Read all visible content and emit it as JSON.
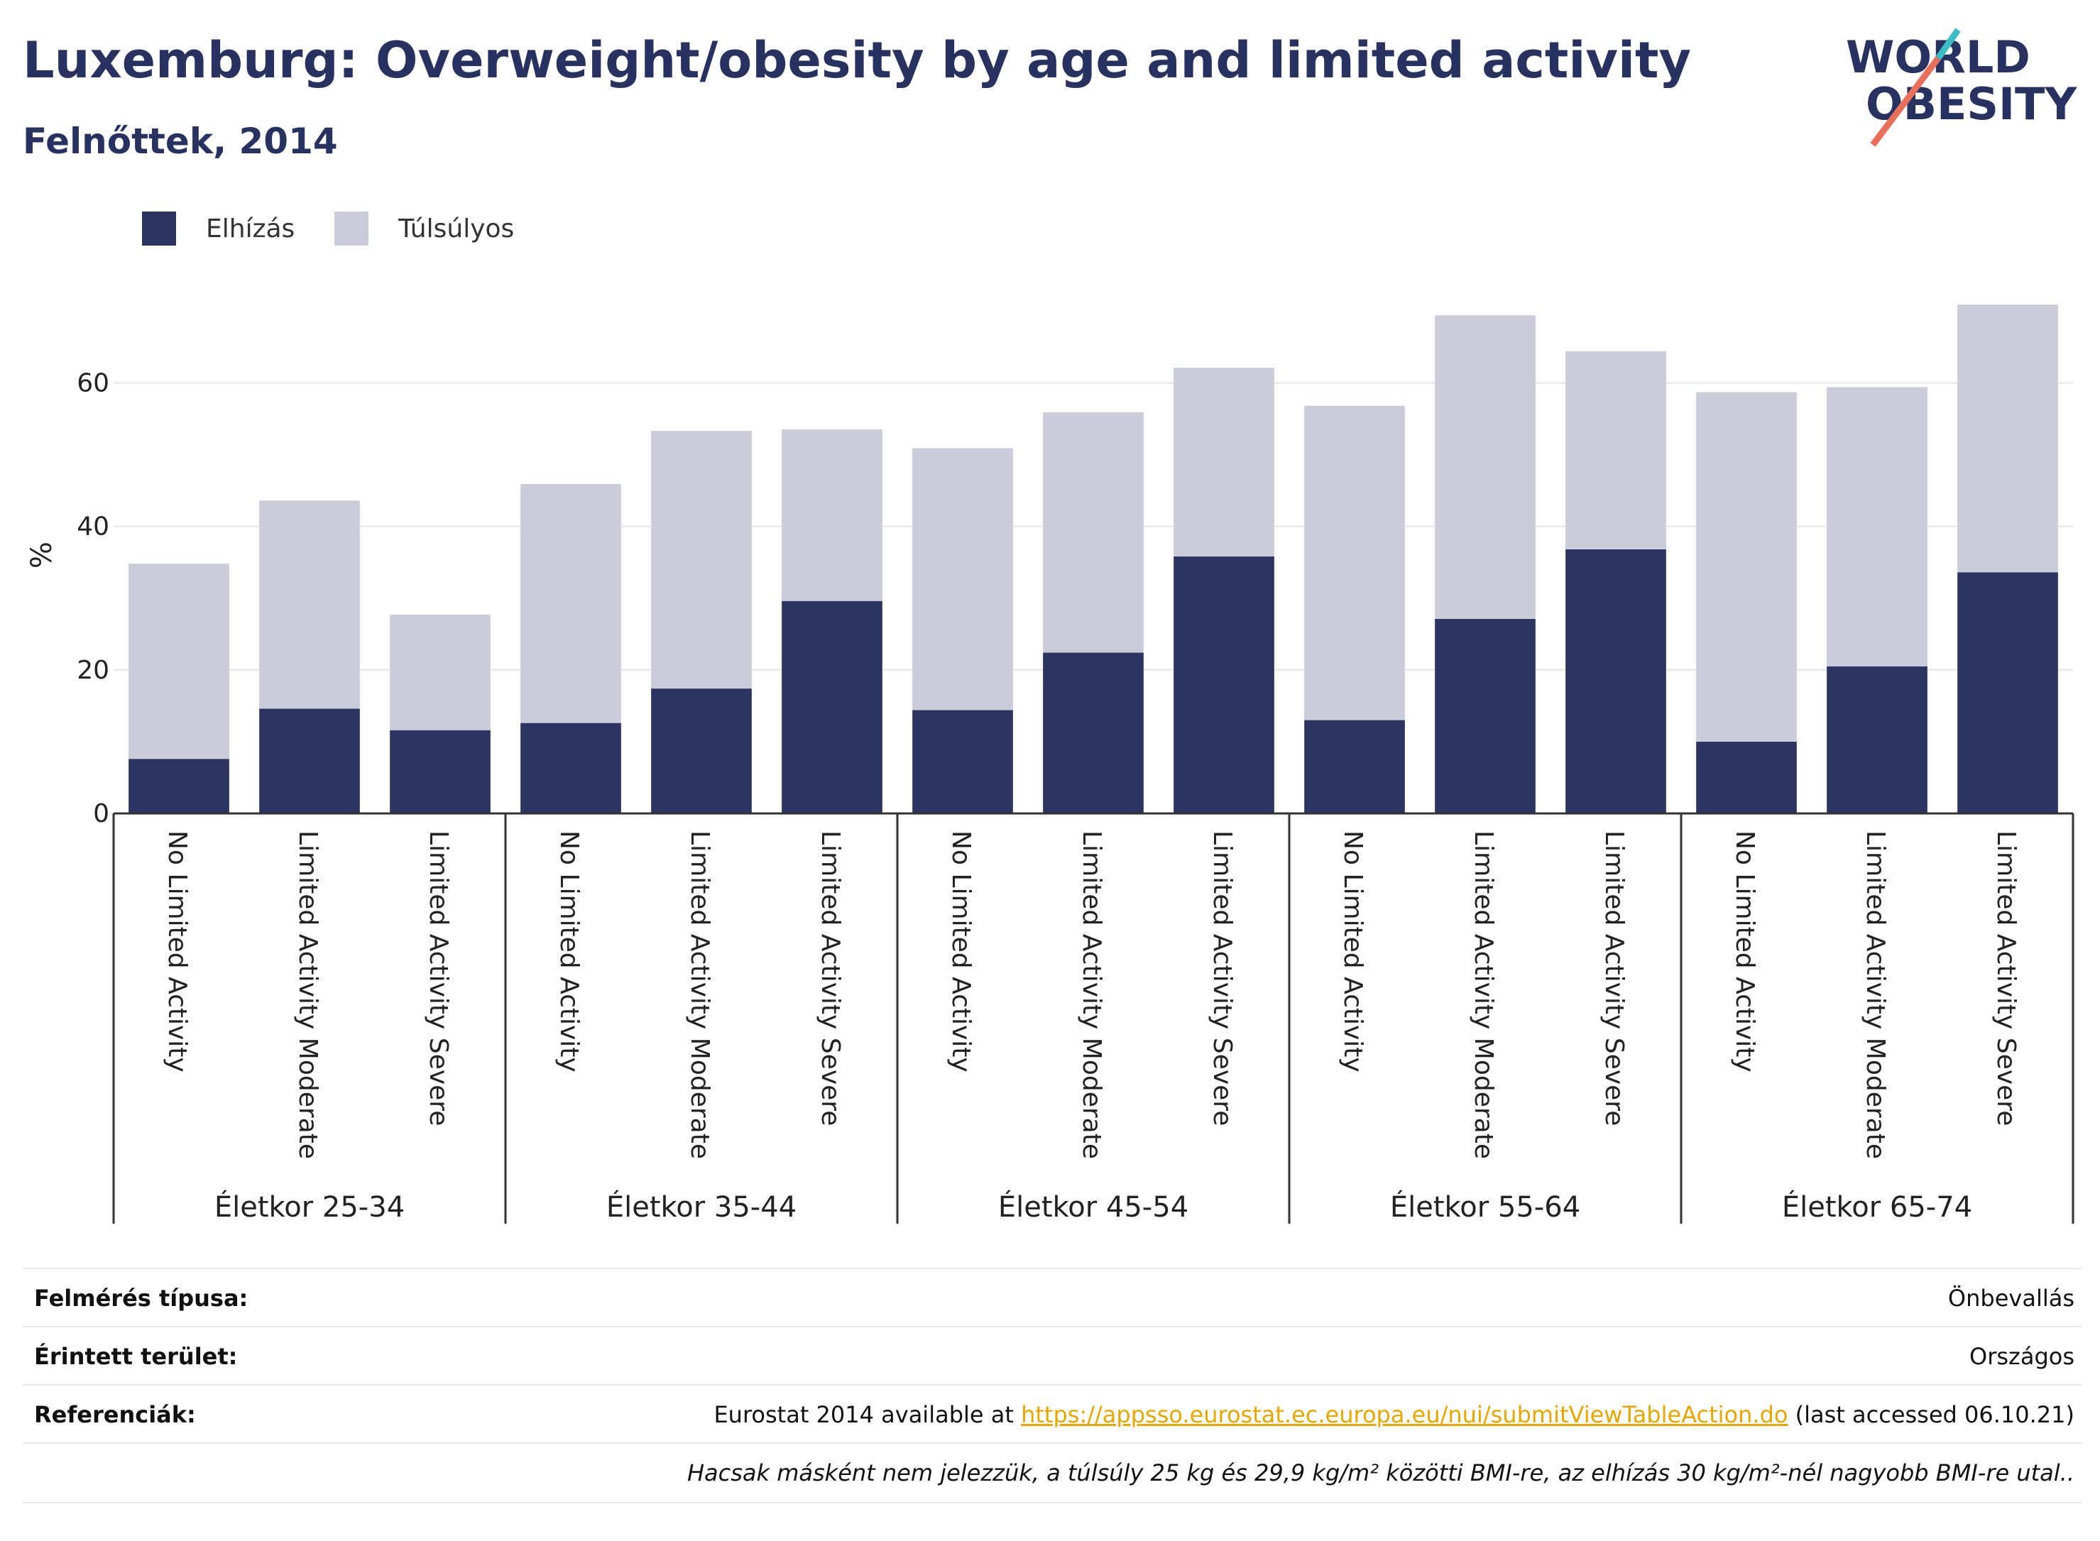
{
  "header": {
    "title": "Luxemburg: Overweight/obesity by age and limited activity",
    "subtitle": "Felnőttek, 2014"
  },
  "logo": {
    "line1": "WORLD",
    "line2": "OBESITY",
    "colors": {
      "text": "#283260",
      "slash_teal": "#3cbcc4",
      "slash_coral": "#e8705a"
    }
  },
  "colors": {
    "obesity": "#2b3461",
    "overweight": "#cbccd9",
    "grid": "#ebebf0",
    "axis": "#333333"
  },
  "chart_data": {
    "type": "bar",
    "stacked": true,
    "ylabel": "%",
    "ylim": [
      0,
      72
    ],
    "yticks": [
      0,
      20,
      40,
      60
    ],
    "grid": true,
    "legend": {
      "position": "top-left"
    },
    "groups": [
      "Életkor 25-34",
      "Életkor 35-44",
      "Életkor 45-54",
      "Életkor 55-64",
      "Életkor 65-74"
    ],
    "categories": [
      "No Limited Activity",
      "Limited Activity Moderate",
      "Limited Activity Severe"
    ],
    "series": [
      {
        "name": "Elhízás",
        "values": [
          [
            7.6,
            14.6,
            11.6
          ],
          [
            12.6,
            17.4,
            29.6
          ],
          [
            14.4,
            22.4,
            35.8
          ],
          [
            13.0,
            27.1,
            36.8
          ],
          [
            10.0,
            20.5,
            33.6
          ]
        ]
      },
      {
        "name": "Túlsúlyos",
        "values": [
          [
            27.2,
            29.0,
            16.1
          ],
          [
            33.3,
            35.9,
            23.9
          ],
          [
            36.5,
            33.5,
            26.3
          ],
          [
            43.8,
            42.3,
            27.6
          ],
          [
            48.7,
            38.9,
            37.3
          ]
        ]
      }
    ]
  },
  "info": {
    "survey_type_label": "Felmérés típusa:",
    "survey_type_value": "Önbevallás",
    "area_label": "Érintett terület:",
    "area_value": "Országos",
    "references_label": "Referenciák:",
    "references_prefix": "Eurostat 2014 available at ",
    "references_link": "https://appsso.eurostat.ec.europa.eu/nui/submitViewTableAction.do",
    "references_suffix": " (last accessed 06.10.21)",
    "note": "Hacsak másként nem jelezzük, a túlsúly 25 kg és 29,9 kg/m² közötti BMI-re, az elhízás 30 kg/m²-nél nagyobb BMI-re utal.."
  }
}
